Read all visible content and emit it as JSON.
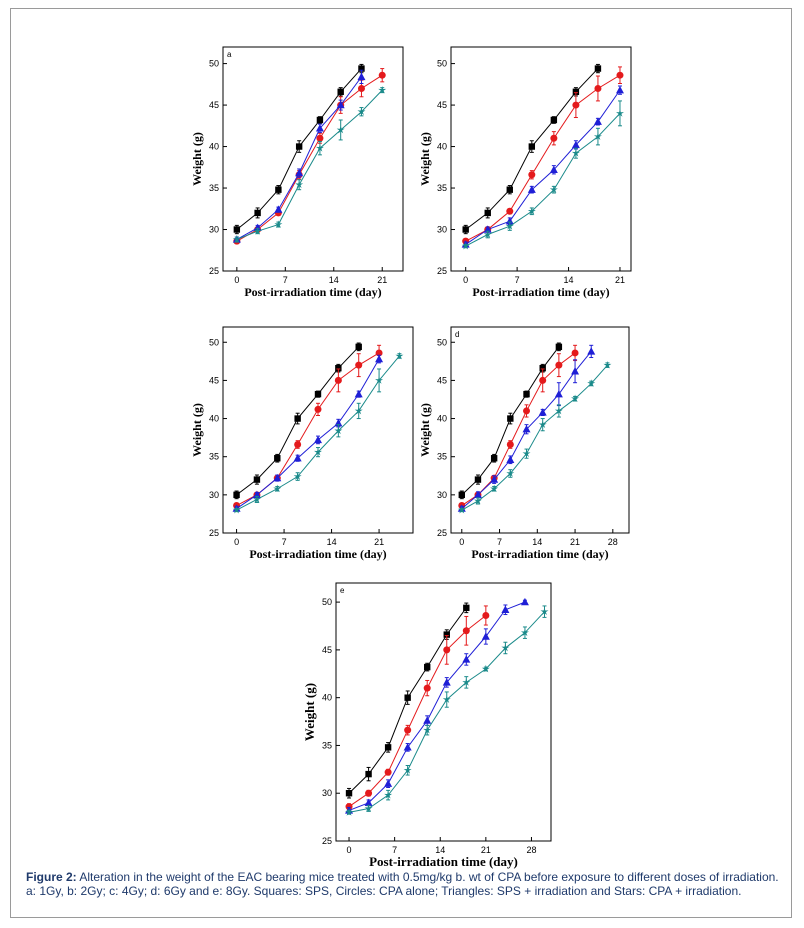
{
  "caption": {
    "label": "Figure 2:",
    "text": "Alteration in the weight of the EAC bearing mice treated with 0.5mg/kg b. wt of CPA before exposure to different doses of irradiation. a: 1Gy, b: 2Gy; c: 4Gy; d: 6Gy and e: 8Gy. Squares: SPS, Circles: CPA alone; Triangles: SPS + irradiation and Stars: CPA + irradiation."
  },
  "colors": {
    "SPS": "#000000",
    "CPA alone": "#e41a1c",
    "SPS + irradiation": "#1f1fd6",
    "CPA + irradiation": "#1a8a8a"
  },
  "chart_data": [
    {
      "id": "a",
      "type": "line",
      "panel_label": "a",
      "xlabel": "Post-irradiation time (day)",
      "ylabel": "Weight (g)",
      "xlim": [
        -2,
        24
      ],
      "ylim": [
        25,
        52
      ],
      "xticks": [
        0,
        7,
        14,
        21
      ],
      "yticks": [
        25,
        30,
        35,
        40,
        45,
        50
      ],
      "series": [
        {
          "name": "SPS",
          "marker": "square",
          "x": [
            0,
            3,
            6,
            9,
            12,
            15,
            18
          ],
          "y": [
            30.0,
            32.0,
            34.8,
            40.0,
            43.2,
            46.6,
            49.4
          ],
          "err": [
            0.5,
            0.6,
            0.5,
            0.7,
            0.4,
            0.5,
            0.5
          ]
        },
        {
          "name": "CPA alone",
          "marker": "circle",
          "x": [
            0,
            3,
            6,
            9,
            12,
            15,
            18,
            21
          ],
          "y": [
            28.6,
            30.0,
            32.0,
            36.6,
            41.0,
            45.0,
            47.0,
            48.6
          ],
          "err": [
            0.3,
            0.3,
            0.3,
            0.5,
            0.6,
            1.0,
            1.0,
            0.8
          ]
        },
        {
          "name": "SPS + irradiation",
          "marker": "triangle",
          "x": [
            0,
            3,
            6,
            9,
            12,
            15,
            18
          ],
          "y": [
            28.8,
            30.2,
            32.4,
            36.8,
            42.2,
            45.0,
            48.4
          ],
          "err": [
            0.3,
            0.3,
            0.3,
            0.5,
            0.5,
            0.6,
            0.8
          ]
        },
        {
          "name": "CPA + irradiation",
          "marker": "star",
          "x": [
            0,
            3,
            6,
            9,
            12,
            15,
            18,
            21
          ],
          "y": [
            28.8,
            29.8,
            30.6,
            35.4,
            39.8,
            42.0,
            44.2,
            46.8
          ],
          "err": [
            0.3,
            0.3,
            0.3,
            0.6,
            0.8,
            1.2,
            0.5,
            0.3
          ]
        }
      ]
    },
    {
      "id": "b",
      "type": "line",
      "panel_label": "",
      "xlabel": "Post-irradiation time (day)",
      "ylabel": "Weight (g)",
      "xlim": [
        -2,
        22.5
      ],
      "ylim": [
        25,
        52
      ],
      "xticks": [
        0,
        7,
        14,
        21
      ],
      "yticks": [
        25,
        30,
        35,
        40,
        45,
        50
      ],
      "series": [
        {
          "name": "SPS",
          "marker": "square",
          "x": [
            0,
            3,
            6,
            9,
            12,
            15,
            18
          ],
          "y": [
            30.0,
            32.0,
            34.8,
            40.0,
            43.2,
            46.6,
            49.4
          ],
          "err": [
            0.5,
            0.6,
            0.5,
            0.7,
            0.4,
            0.5,
            0.5
          ]
        },
        {
          "name": "CPA alone",
          "marker": "circle",
          "x": [
            0,
            3,
            6,
            9,
            12,
            15,
            18,
            21
          ],
          "y": [
            28.6,
            30.0,
            32.2,
            36.6,
            41.0,
            45.0,
            47.0,
            48.6
          ],
          "err": [
            0.3,
            0.3,
            0.3,
            0.5,
            0.8,
            1.5,
            1.5,
            1.0
          ]
        },
        {
          "name": "SPS + irradiation",
          "marker": "triangle",
          "x": [
            0,
            3,
            6,
            9,
            12,
            15,
            18,
            21
          ],
          "y": [
            28.2,
            30.0,
            31.0,
            34.8,
            37.2,
            40.2,
            43.0,
            46.8
          ],
          "err": [
            0.3,
            0.3,
            0.4,
            0.4,
            0.5,
            0.5,
            0.4,
            0.5
          ]
        },
        {
          "name": "CPA + irradiation",
          "marker": "star",
          "x": [
            0,
            3,
            6,
            9,
            12,
            15,
            18,
            21
          ],
          "y": [
            28.0,
            29.4,
            30.4,
            32.2,
            34.8,
            39.2,
            41.2,
            44.0
          ],
          "err": [
            0.2,
            0.4,
            0.5,
            0.4,
            0.4,
            0.6,
            1.0,
            1.5
          ]
        }
      ]
    },
    {
      "id": "c",
      "type": "line",
      "panel_label": "",
      "xlabel": "Post-irradiation time (day)",
      "ylabel": "Weight (g)",
      "xlim": [
        -2,
        26
      ],
      "ylim": [
        25,
        52
      ],
      "xticks": [
        0,
        7,
        14,
        21
      ],
      "yticks": [
        25,
        30,
        35,
        40,
        45,
        50
      ],
      "series": [
        {
          "name": "SPS",
          "marker": "square",
          "x": [
            0,
            3,
            6,
            9,
            12,
            15,
            18
          ],
          "y": [
            30.0,
            32.0,
            34.8,
            40.0,
            43.2,
            46.6,
            49.4
          ],
          "err": [
            0.5,
            0.6,
            0.5,
            0.7,
            0.4,
            0.5,
            0.5
          ]
        },
        {
          "name": "CPA alone",
          "marker": "circle",
          "x": [
            0,
            3,
            6,
            9,
            12,
            15,
            18,
            21
          ],
          "y": [
            28.6,
            30.0,
            32.2,
            36.6,
            41.2,
            45.0,
            47.0,
            48.6
          ],
          "err": [
            0.3,
            0.3,
            0.3,
            0.5,
            0.8,
            1.5,
            1.5,
            1.0
          ]
        },
        {
          "name": "SPS + irradiation",
          "marker": "triangle",
          "x": [
            0,
            3,
            6,
            9,
            12,
            15,
            18,
            21
          ],
          "y": [
            28.2,
            30.0,
            32.2,
            34.8,
            37.2,
            39.4,
            43.2,
            47.8
          ],
          "err": [
            0.3,
            0.3,
            0.4,
            0.4,
            0.5,
            0.5,
            0.4,
            0.5
          ]
        },
        {
          "name": "CPA + irradiation",
          "marker": "star",
          "x": [
            0,
            3,
            6,
            9,
            12,
            15,
            18,
            21,
            24
          ],
          "y": [
            28.0,
            29.4,
            30.8,
            32.4,
            35.6,
            38.4,
            41.0,
            45.0,
            48.2
          ],
          "err": [
            0.2,
            0.4,
            0.3,
            0.5,
            0.6,
            0.8,
            1.0,
            1.5,
            0.3
          ]
        }
      ]
    },
    {
      "id": "d",
      "type": "line",
      "panel_label": "d",
      "xlabel": "Post-irradiation time (day)",
      "ylabel": "Weight (g)",
      "xlim": [
        -2,
        31
      ],
      "ylim": [
        25,
        52
      ],
      "xticks": [
        0,
        7,
        14,
        21,
        28
      ],
      "yticks": [
        25,
        30,
        35,
        40,
        45,
        50
      ],
      "series": [
        {
          "name": "SPS",
          "marker": "square",
          "x": [
            0,
            3,
            6,
            9,
            12,
            15,
            18
          ],
          "y": [
            30.0,
            32.0,
            34.8,
            40.0,
            43.2,
            46.6,
            49.4
          ],
          "err": [
            0.5,
            0.6,
            0.5,
            0.7,
            0.4,
            0.5,
            0.5
          ]
        },
        {
          "name": "CPA alone",
          "marker": "circle",
          "x": [
            0,
            3,
            6,
            9,
            12,
            15,
            18,
            21
          ],
          "y": [
            28.6,
            30.0,
            32.2,
            36.6,
            41.0,
            45.0,
            47.0,
            48.6
          ],
          "err": [
            0.3,
            0.3,
            0.3,
            0.5,
            0.8,
            1.5,
            1.5,
            1.0
          ]
        },
        {
          "name": "SPS + irradiation",
          "marker": "triangle",
          "x": [
            0,
            3,
            6,
            9,
            12,
            15,
            18,
            21,
            24
          ],
          "y": [
            28.2,
            30.0,
            32.0,
            34.6,
            38.6,
            40.8,
            43.2,
            46.2,
            48.8
          ],
          "err": [
            0.3,
            0.4,
            0.5,
            0.5,
            0.6,
            0.4,
            1.5,
            1.5,
            0.8
          ]
        },
        {
          "name": "CPA + irradiation",
          "marker": "star",
          "x": [
            0,
            3,
            6,
            9,
            12,
            15,
            18,
            21,
            24,
            27
          ],
          "y": [
            28.0,
            29.2,
            30.8,
            32.8,
            35.4,
            39.2,
            41.0,
            42.6,
            44.6,
            47.0
          ],
          "err": [
            0.2,
            0.4,
            0.3,
            0.5,
            0.6,
            0.8,
            0.8,
            0.3,
            0.3,
            0.3
          ]
        }
      ]
    },
    {
      "id": "e",
      "type": "line",
      "panel_label": "e",
      "xlabel": "Post-irradiation time (day)",
      "ylabel": "Weight (g)",
      "xlim": [
        -2,
        31
      ],
      "ylim": [
        25,
        52
      ],
      "xticks": [
        0,
        7,
        14,
        21,
        28
      ],
      "yticks": [
        25,
        30,
        35,
        40,
        45,
        50
      ],
      "series": [
        {
          "name": "SPS",
          "marker": "square",
          "x": [
            0,
            3,
            6,
            9,
            12,
            15,
            18
          ],
          "y": [
            30.0,
            32.0,
            34.8,
            40.0,
            43.2,
            46.6,
            49.4
          ],
          "err": [
            0.5,
            0.7,
            0.5,
            0.7,
            0.4,
            0.5,
            0.5
          ]
        },
        {
          "name": "CPA alone",
          "marker": "circle",
          "x": [
            0,
            3,
            6,
            9,
            12,
            15,
            18,
            21
          ],
          "y": [
            28.6,
            30.0,
            32.2,
            36.6,
            41.0,
            45.0,
            47.0,
            48.6
          ],
          "err": [
            0.3,
            0.3,
            0.3,
            0.5,
            0.8,
            1.5,
            1.5,
            1.0
          ]
        },
        {
          "name": "SPS + irradiation",
          "marker": "triangle",
          "x": [
            0,
            3,
            6,
            9,
            12,
            15,
            18,
            21,
            24,
            27
          ],
          "y": [
            28.2,
            29.0,
            31.0,
            34.8,
            37.6,
            41.6,
            44.0,
            46.4,
            49.2,
            50.0
          ],
          "err": [
            0.3,
            0.3,
            0.4,
            0.4,
            0.5,
            0.5,
            0.6,
            0.8,
            0.5,
            0.2
          ]
        },
        {
          "name": "CPA + irradiation",
          "marker": "star",
          "x": [
            0,
            3,
            6,
            9,
            12,
            15,
            18,
            21,
            24,
            27,
            30
          ],
          "y": [
            28.0,
            28.4,
            29.8,
            32.4,
            36.6,
            39.8,
            41.6,
            43.0,
            45.2,
            46.8,
            49.0
          ],
          "err": [
            0.2,
            0.3,
            0.5,
            0.5,
            0.5,
            0.8,
            0.6,
            0.2,
            0.6,
            0.6,
            0.6
          ]
        }
      ]
    }
  ]
}
